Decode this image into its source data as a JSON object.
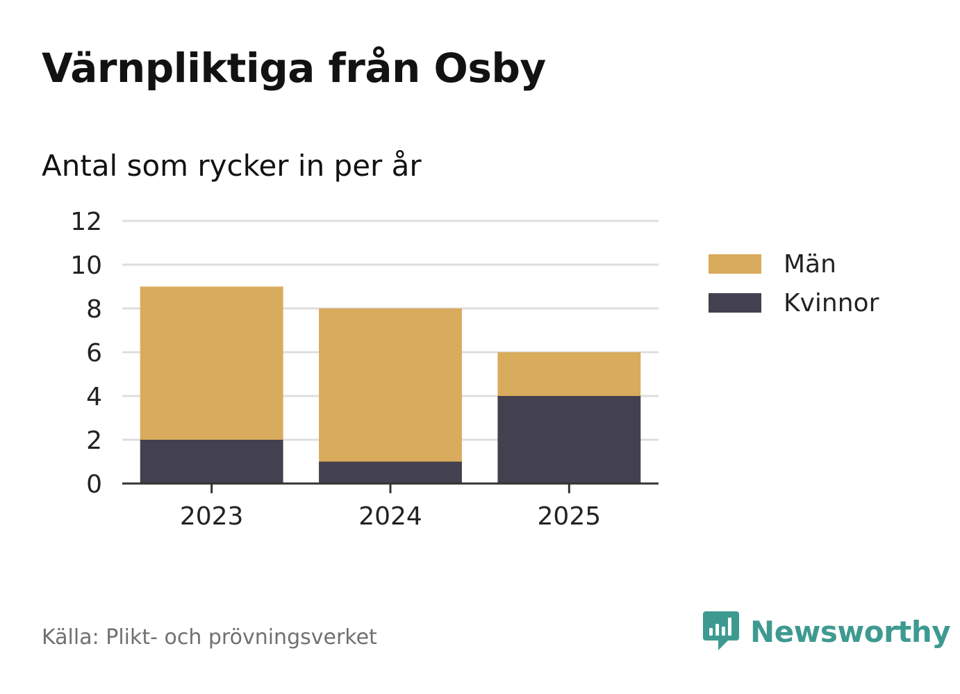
{
  "title": "Värnpliktiga från Osby",
  "subtitle": "Antal som rycker in per år",
  "source": "Källa: Plikt- och prövningsverket",
  "brand": {
    "name": "Newsworthy",
    "icon": "bar-chart-speech-bubble-icon",
    "color": "#3e9a90"
  },
  "colors": {
    "man": "#d9ab5c",
    "kvinnor": "#43414f",
    "grid": "#dedede",
    "axis": "#333333",
    "tick_text": "#222222"
  },
  "chart_data": {
    "type": "bar",
    "stacked": true,
    "categories": [
      "2023",
      "2024",
      "2025"
    ],
    "series": [
      {
        "name": "Kvinnor",
        "values": [
          2,
          1,
          4
        ],
        "color": "#43414f"
      },
      {
        "name": "Män",
        "values": [
          7,
          7,
          2
        ],
        "color": "#d9ab5c"
      }
    ],
    "ylim": [
      0,
      12
    ],
    "yticks": [
      "0",
      "2",
      "4",
      "6",
      "8",
      "10",
      "12"
    ],
    "grid": true,
    "legend_position": "right"
  }
}
